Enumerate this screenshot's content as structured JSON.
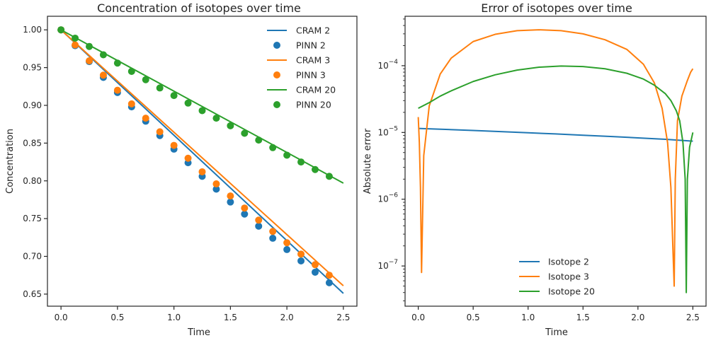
{
  "chart_data": [
    {
      "type": "line",
      "title": "Concentration of isotopes over time",
      "xlabel": "Time",
      "ylabel": "Concentration",
      "xlim": [
        -0.12,
        2.62
      ],
      "ylim": [
        0.634,
        1.018
      ],
      "xticks": [
        0.0,
        0.5,
        1.0,
        1.5,
        2.0,
        2.5
      ],
      "xtick_labels": [
        "0.0",
        "0.5",
        "1.0",
        "1.5",
        "2.0",
        "2.5"
      ],
      "yticks": [
        0.65,
        0.7,
        0.75,
        0.8,
        0.85,
        0.9,
        0.95,
        1.0
      ],
      "ytick_labels": [
        "0.65",
        "0.70",
        "0.75",
        "0.80",
        "0.85",
        "0.90",
        "0.95",
        "1.00"
      ],
      "legend_position": "top-right",
      "series": [
        {
          "name": "CRAM 2",
          "kind": "line",
          "color": "#1f77b4",
          "x": [
            0.0,
            2.5
          ],
          "y": [
            1.0,
            0.651
          ]
        },
        {
          "name": "PINN 2",
          "kind": "scatter",
          "color": "#1f77b4",
          "x": [
            0.0,
            0.125,
            0.25,
            0.375,
            0.5,
            0.625,
            0.75,
            0.875,
            1.0,
            1.125,
            1.25,
            1.375,
            1.5,
            1.625,
            1.75,
            1.875,
            2.0,
            2.125,
            2.25,
            2.375
          ],
          "y": [
            1.0,
            0.979,
            0.958,
            0.937,
            0.917,
            0.898,
            0.879,
            0.86,
            0.842,
            0.824,
            0.806,
            0.789,
            0.772,
            0.756,
            0.74,
            0.724,
            0.709,
            0.694,
            0.679,
            0.665
          ]
        },
        {
          "name": "CRAM 3",
          "kind": "line",
          "color": "#ff7f0e",
          "x": [
            0.0,
            2.5
          ],
          "y": [
            1.0,
            0.661
          ]
        },
        {
          "name": "PINN 3",
          "kind": "scatter",
          "color": "#ff7f0e",
          "x": [
            0.0,
            0.125,
            0.25,
            0.375,
            0.5,
            0.625,
            0.75,
            0.875,
            1.0,
            1.125,
            1.25,
            1.375,
            1.5,
            1.625,
            1.75,
            1.875,
            2.0,
            2.125,
            2.25,
            2.375
          ],
          "y": [
            1.0,
            0.98,
            0.959,
            0.94,
            0.92,
            0.902,
            0.883,
            0.865,
            0.847,
            0.83,
            0.812,
            0.796,
            0.78,
            0.764,
            0.748,
            0.733,
            0.718,
            0.703,
            0.689,
            0.675
          ]
        },
        {
          "name": "CRAM 20",
          "kind": "line",
          "color": "#2ca02c",
          "x": [
            0.0,
            2.5
          ],
          "y": [
            1.0,
            0.797
          ]
        },
        {
          "name": "PINN 20",
          "kind": "scatter",
          "color": "#2ca02c",
          "x": [
            0.0,
            0.125,
            0.25,
            0.375,
            0.5,
            0.625,
            0.75,
            0.875,
            1.0,
            1.125,
            1.25,
            1.375,
            1.5,
            1.625,
            1.75,
            1.875,
            2.0,
            2.125,
            2.25,
            2.375
          ],
          "y": [
            1.0,
            0.989,
            0.978,
            0.967,
            0.956,
            0.945,
            0.934,
            0.923,
            0.913,
            0.903,
            0.893,
            0.883,
            0.873,
            0.863,
            0.854,
            0.844,
            0.834,
            0.825,
            0.815,
            0.806
          ]
        }
      ]
    },
    {
      "type": "line",
      "title": "Error of isotopes over time",
      "xlabel": "Time",
      "ylabel": "Absolute error",
      "yscale": "log",
      "xlim": [
        -0.12,
        2.62
      ],
      "ylim": [
        2.5e-08,
        0.00055
      ],
      "xticks": [
        0.0,
        0.5,
        1.0,
        1.5,
        2.0,
        2.5
      ],
      "xtick_labels": [
        "0.0",
        "0.5",
        "1.0",
        "1.5",
        "2.0",
        "2.5"
      ],
      "yticks": [
        1e-07,
        1e-06,
        1e-05,
        0.0001
      ],
      "ytick_base": "10",
      "ytick_exponents": [
        "−7",
        "−6",
        "−5",
        "−4"
      ],
      "legend_position": "lower-center",
      "series": [
        {
          "name": "Isotope 2",
          "color": "#1f77b4",
          "x": [
            0.0,
            0.25,
            0.5,
            0.75,
            1.0,
            1.25,
            1.5,
            1.75,
            2.0,
            2.25,
            2.5
          ],
          "y": [
            1.15e-05,
            1.11e-05,
            1.07e-05,
            1.03e-05,
            9.9e-06,
            9.5e-06,
            9.1e-06,
            8.7e-06,
            8.3e-06,
            7.9e-06,
            7.4e-06
          ]
        },
        {
          "name": "Isotope 3",
          "color": "#ff7f0e",
          "x": [
            0.0,
            0.01,
            0.02,
            0.03,
            0.05,
            0.1,
            0.2,
            0.3,
            0.5,
            0.7,
            0.9,
            1.1,
            1.3,
            1.5,
            1.7,
            1.9,
            2.05,
            2.15,
            2.22,
            2.27,
            2.3,
            2.32,
            2.33,
            2.34,
            2.36,
            2.4,
            2.45,
            2.48,
            2.5
          ],
          "y": [
            1.7e-05,
            7e-06,
            1.5e-06,
            8e-08,
            4.5e-06,
            2.5e-05,
            7.5e-05,
            0.00013,
            0.00023,
            0.000295,
            0.000335,
            0.000345,
            0.000335,
            0.0003,
            0.000245,
            0.000175,
            0.000105,
            5.5e-05,
            2.3e-05,
            7e-06,
            1.5e-06,
            1.5e-07,
            5e-08,
            2e-06,
            1.5e-05,
            3.5e-05,
            6e-05,
            8e-05,
            9e-05
          ]
        },
        {
          "name": "Isotope 20",
          "color": "#2ca02c",
          "x": [
            0.0,
            0.1,
            0.2,
            0.3,
            0.5,
            0.7,
            0.9,
            1.1,
            1.3,
            1.5,
            1.7,
            1.9,
            2.05,
            2.15,
            2.25,
            2.3,
            2.35,
            2.38,
            2.41,
            2.43,
            2.44,
            2.45,
            2.47,
            2.5
          ],
          "y": [
            2.3e-05,
            2.8e-05,
            3.5e-05,
            4.2e-05,
            5.8e-05,
            7.3e-05,
            8.6e-05,
            9.5e-05,
            9.9e-05,
            9.7e-05,
            9e-05,
            7.7e-05,
            6.3e-05,
            5.1e-05,
            3.8e-05,
            3e-05,
            2.1e-05,
            1.5e-05,
            7e-06,
            2e-06,
            4e-08,
            2e-06,
            6e-06,
            1e-05
          ]
        }
      ]
    }
  ]
}
